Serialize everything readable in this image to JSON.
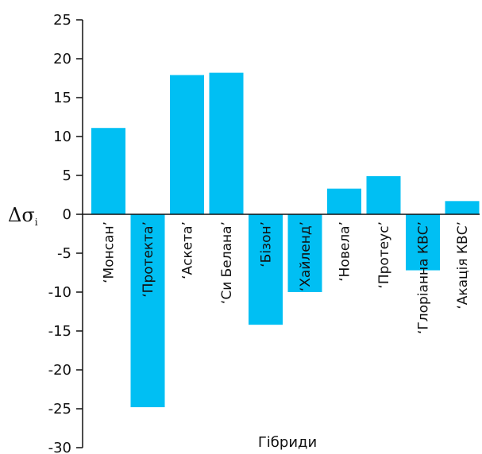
{
  "chart_data": {
    "type": "bar",
    "categories": [
      "‘Монсан’",
      "‘Протекта’",
      "‘Аскета’",
      "‘Си Белана’",
      "‘Бізон’",
      "‘Хайленд’",
      "‘Новела’",
      "‘Протеус’",
      "‘Глоріанна КВС’",
      "‘Акація КВС’"
    ],
    "values": [
      11.1,
      -24.8,
      17.9,
      18.2,
      -14.2,
      -10.0,
      3.3,
      4.9,
      -7.2,
      1.7
    ],
    "xlabel": "Гібриди",
    "ylabel": "Δσ",
    "ylabel_subscript": "i",
    "ylim": [
      -30,
      25
    ],
    "yticks": [
      25,
      20,
      15,
      10,
      5,
      0,
      -5,
      -10,
      -15,
      -20,
      -25,
      -30
    ],
    "ytick_labels": [
      "25",
      "20",
      "15",
      "10",
      "5",
      "0",
      "-5",
      "-10",
      "-15",
      "-20",
      "-25",
      "-30"
    ],
    "grid": false,
    "legend": "none",
    "bar_color": "#00BFF3"
  }
}
